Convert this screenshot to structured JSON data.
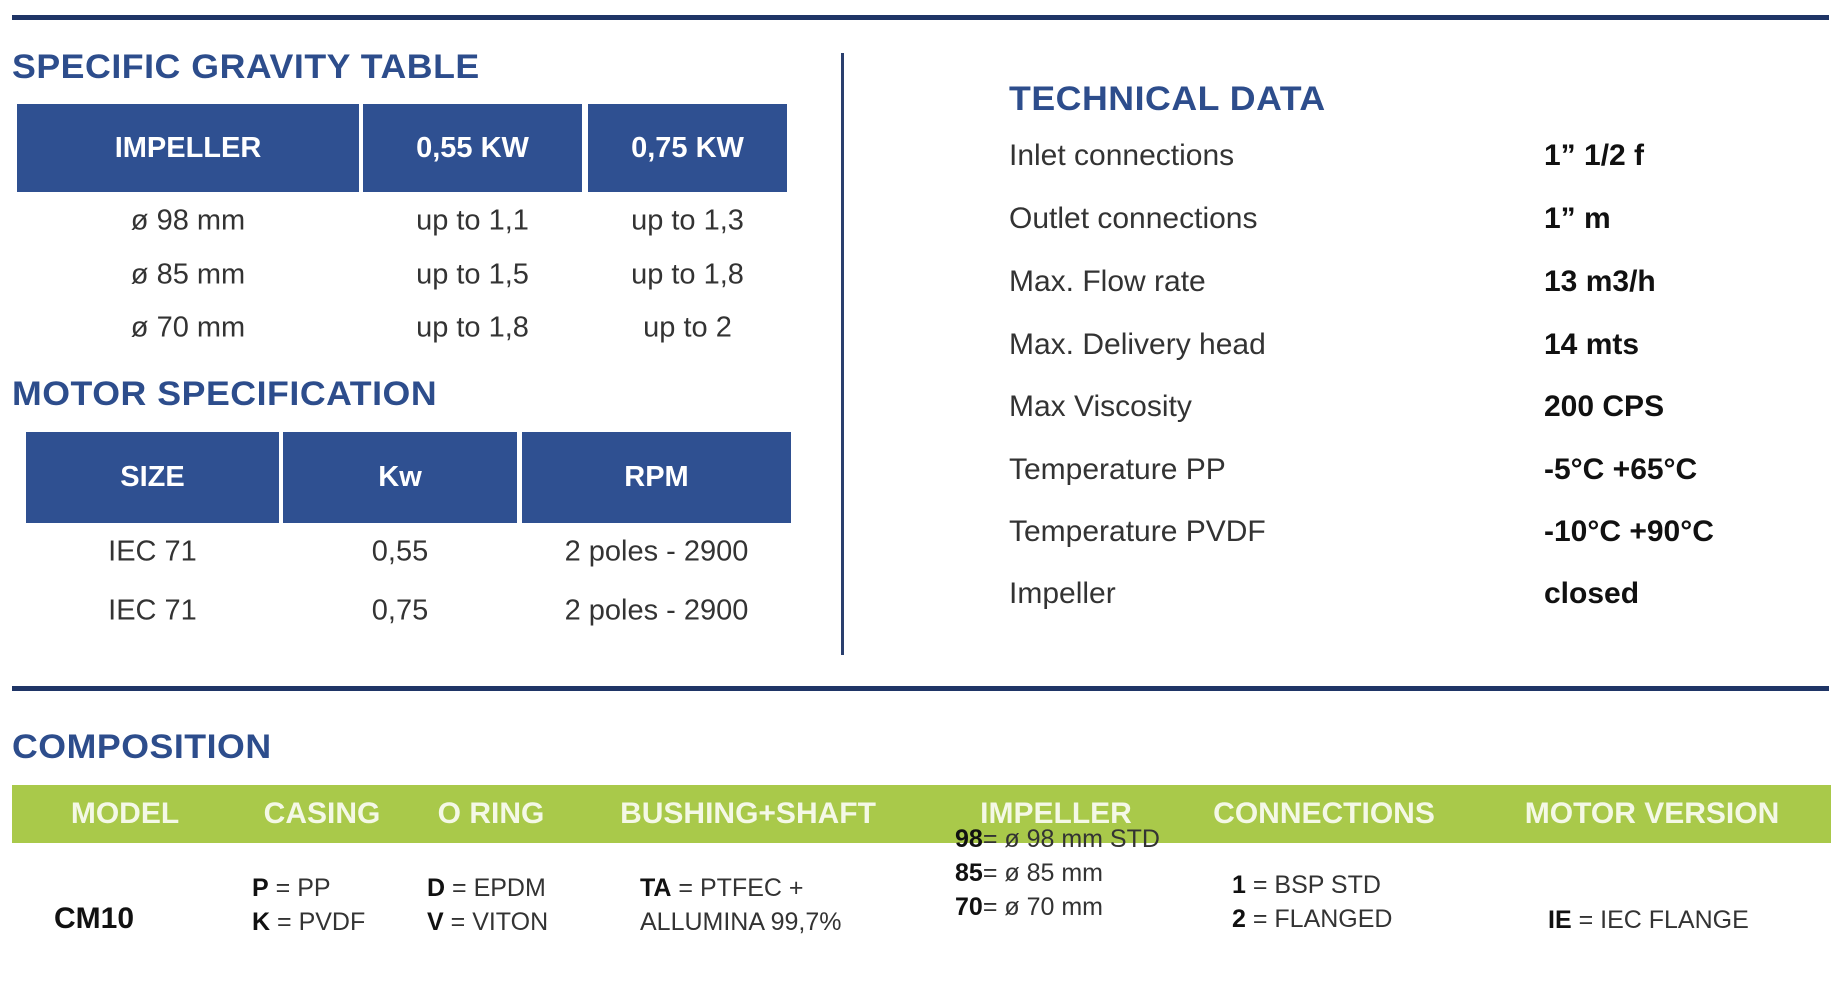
{
  "gravity": {
    "title": "SPECIFIC GRAVITY TABLE",
    "headers": [
      "IMPELLER",
      "0,55 KW",
      "0,75 KW"
    ],
    "rows": [
      [
        "ø 98 mm",
        "up to 1,1",
        "up to 1,3"
      ],
      [
        "ø 85 mm",
        "up to 1,5",
        "up to 1,8"
      ],
      [
        "ø 70 mm",
        "up to 1,8",
        "up to 2"
      ]
    ]
  },
  "motor": {
    "title": "MOTOR SPECIFICATION",
    "headers": [
      "SIZE",
      "Kw",
      "RPM"
    ],
    "rows": [
      [
        "IEC 71",
        "0,55",
        "2 poles - 2900"
      ],
      [
        "IEC 71",
        "0,75",
        "2 poles - 2900"
      ]
    ]
  },
  "technical": {
    "title": "TECHNICAL DATA",
    "rows": [
      {
        "label": "Inlet connections",
        "value": "1” 1/2 f"
      },
      {
        "label": "Outlet connections",
        "value": "1” m"
      },
      {
        "label": "Max. Flow rate",
        "value": "13 m3/h"
      },
      {
        "label": "Max. Delivery head",
        "value": "14 mts"
      },
      {
        "label": "Max Viscosity",
        "value": "200 CPS"
      },
      {
        "label": "Temperature PP",
        "value": "-5°C +65°C"
      },
      {
        "label": "Temperature PVDF",
        "value": "-10°C +90°C"
      },
      {
        "label": "Impeller",
        "value": "closed"
      }
    ]
  },
  "composition": {
    "title": "COMPOSITION",
    "headers": [
      "MODEL",
      "CASING",
      "O RING",
      "BUSHING+SHAFT",
      "IMPELLER",
      "CONNECTIONS",
      "MOTOR VERSION"
    ],
    "model": "CM10",
    "casing": [
      {
        "code": "P",
        "desc": "PP"
      },
      {
        "code": "K",
        "desc": "PVDF"
      }
    ],
    "oring": [
      {
        "code": "D",
        "desc": "EPDM"
      },
      {
        "code": "V",
        "desc": "VITON"
      }
    ],
    "shaft": [
      {
        "code": "TA",
        "desc": "PTFEC +"
      },
      {
        "code": "",
        "desc": "ALLUMINA 99,7%"
      }
    ],
    "impeller": [
      {
        "code": "98",
        "desc": "ø 98 mm STD"
      },
      {
        "code": "85",
        "desc": "ø 85 mm"
      },
      {
        "code": "70",
        "desc": "ø 70 mm"
      }
    ],
    "connections": [
      {
        "code": "1",
        "desc": "BSP STD"
      },
      {
        "code": "2",
        "desc": "FLANGED"
      }
    ],
    "motor_version": [
      {
        "code": "IE",
        "desc": "IEC FLANGE"
      }
    ]
  },
  "colors": {
    "navy": "#2f5091",
    "green": "#a9c94a",
    "rule": "#1f3566"
  }
}
